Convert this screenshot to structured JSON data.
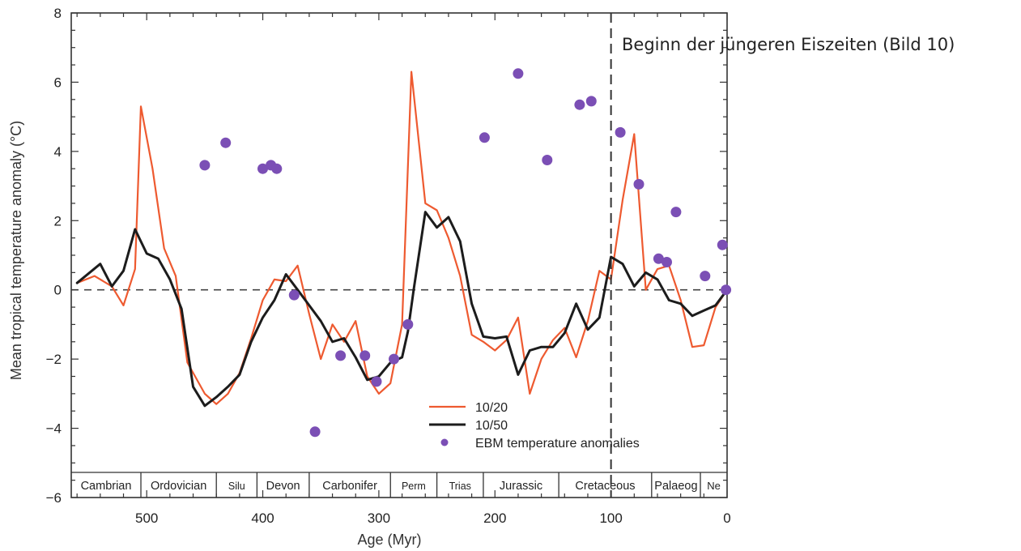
{
  "chart_data": {
    "type": "line",
    "xlabel": "Age (Myr)",
    "ylabel": "Mean tropical temperature anomaly (°C)",
    "xlim": [
      565,
      0
    ],
    "ylim": [
      -6,
      8
    ],
    "x_ticks": [
      500,
      400,
      300,
      200,
      100,
      0
    ],
    "y_ticks": [
      -6,
      -4,
      -2,
      0,
      2,
      4,
      6,
      8
    ],
    "grid": false,
    "legend_position": "bottom-center",
    "reference_line": {
      "y": 0,
      "style": "dashed"
    },
    "marker_line": {
      "x": 100,
      "style": "dashed"
    },
    "annotation": "Beginn der jüngeren Eiszeiten (Bild 10)",
    "periods": [
      {
        "label": "Cambrian",
        "start": 565,
        "end": 505
      },
      {
        "label": "Ordovician",
        "start": 505,
        "end": 440
      },
      {
        "label": "Silu",
        "start": 440,
        "end": 405
      },
      {
        "label": "Devon",
        "start": 405,
        "end": 360
      },
      {
        "label": "Carbonifer",
        "start": 360,
        "end": 290
      },
      {
        "label": "Perm",
        "start": 290,
        "end": 250
      },
      {
        "label": "Trias",
        "start": 250,
        "end": 210
      },
      {
        "label": "Jurassic",
        "start": 210,
        "end": 145
      },
      {
        "label": "Cretaceous",
        "start": 145,
        "end": 65
      },
      {
        "label": "Palaeog",
        "start": 65,
        "end": 23
      },
      {
        "label": "Ne",
        "start": 23,
        "end": 0
      }
    ],
    "series": [
      {
        "name": "10/20",
        "kind": "line",
        "color": "#ee5a30",
        "points": [
          [
            560,
            0.2
          ],
          [
            545,
            0.4
          ],
          [
            530,
            0.1
          ],
          [
            520,
            -0.45
          ],
          [
            510,
            0.6
          ],
          [
            505,
            5.3
          ],
          [
            495,
            3.5
          ],
          [
            485,
            1.2
          ],
          [
            475,
            0.4
          ],
          [
            465,
            -2.1
          ],
          [
            450,
            -3.0
          ],
          [
            440,
            -3.3
          ],
          [
            430,
            -3.0
          ],
          [
            420,
            -2.4
          ],
          [
            410,
            -1.4
          ],
          [
            400,
            -0.3
          ],
          [
            390,
            0.3
          ],
          [
            380,
            0.25
          ],
          [
            370,
            0.7
          ],
          [
            360,
            -0.7
          ],
          [
            350,
            -2.0
          ],
          [
            340,
            -1.0
          ],
          [
            330,
            -1.5
          ],
          [
            320,
            -0.9
          ],
          [
            310,
            -2.5
          ],
          [
            300,
            -3.0
          ],
          [
            290,
            -2.7
          ],
          [
            280,
            -1.0
          ],
          [
            272,
            6.3
          ],
          [
            260,
            2.5
          ],
          [
            250,
            2.3
          ],
          [
            240,
            1.5
          ],
          [
            230,
            0.4
          ],
          [
            220,
            -1.3
          ],
          [
            210,
            -1.5
          ],
          [
            200,
            -1.75
          ],
          [
            190,
            -1.45
          ],
          [
            180,
            -0.8
          ],
          [
            170,
            -3.0
          ],
          [
            160,
            -2.0
          ],
          [
            150,
            -1.45
          ],
          [
            140,
            -1.1
          ],
          [
            130,
            -1.95
          ],
          [
            120,
            -0.9
          ],
          [
            110,
            0.55
          ],
          [
            100,
            0.3
          ],
          [
            90,
            2.6
          ],
          [
            80,
            4.5
          ],
          [
            70,
            0.0
          ],
          [
            60,
            0.6
          ],
          [
            50,
            0.7
          ],
          [
            40,
            -0.3
          ],
          [
            30,
            -1.65
          ],
          [
            20,
            -1.6
          ],
          [
            10,
            -0.5
          ],
          [
            0,
            0.0
          ]
        ]
      },
      {
        "name": "10/50",
        "kind": "line",
        "color": "#1c1c1c",
        "points": [
          [
            560,
            0.2
          ],
          [
            540,
            0.75
          ],
          [
            530,
            0.1
          ],
          [
            520,
            0.55
          ],
          [
            510,
            1.75
          ],
          [
            500,
            1.05
          ],
          [
            490,
            0.9
          ],
          [
            480,
            0.3
          ],
          [
            470,
            -0.55
          ],
          [
            460,
            -2.8
          ],
          [
            450,
            -3.35
          ],
          [
            440,
            -3.1
          ],
          [
            430,
            -2.8
          ],
          [
            420,
            -2.45
          ],
          [
            410,
            -1.5
          ],
          [
            400,
            -0.8
          ],
          [
            390,
            -0.3
          ],
          [
            380,
            0.45
          ],
          [
            370,
            0.0
          ],
          [
            360,
            -0.45
          ],
          [
            350,
            -0.9
          ],
          [
            340,
            -1.5
          ],
          [
            330,
            -1.4
          ],
          [
            320,
            -1.95
          ],
          [
            310,
            -2.6
          ],
          [
            300,
            -2.5
          ],
          [
            290,
            -2.1
          ],
          [
            280,
            -1.95
          ],
          [
            275,
            -1.2
          ],
          [
            270,
            0.0
          ],
          [
            260,
            2.25
          ],
          [
            250,
            1.8
          ],
          [
            240,
            2.1
          ],
          [
            230,
            1.4
          ],
          [
            220,
            -0.4
          ],
          [
            210,
            -1.35
          ],
          [
            200,
            -1.4
          ],
          [
            190,
            -1.35
          ],
          [
            180,
            -2.45
          ],
          [
            170,
            -1.75
          ],
          [
            160,
            -1.65
          ],
          [
            150,
            -1.65
          ],
          [
            140,
            -1.25
          ],
          [
            130,
            -0.4
          ],
          [
            120,
            -1.15
          ],
          [
            110,
            -0.8
          ],
          [
            100,
            0.95
          ],
          [
            90,
            0.75
          ],
          [
            80,
            0.1
          ],
          [
            70,
            0.5
          ],
          [
            60,
            0.3
          ],
          [
            50,
            -0.3
          ],
          [
            40,
            -0.4
          ],
          [
            30,
            -0.75
          ],
          [
            20,
            -0.6
          ],
          [
            10,
            -0.45
          ],
          [
            0,
            0.0
          ]
        ]
      },
      {
        "name": "EBM temperature anomalies",
        "kind": "scatter",
        "color": "#7b4fb5",
        "points": [
          [
            450,
            3.6
          ],
          [
            432,
            4.25
          ],
          [
            400,
            3.5
          ],
          [
            393,
            3.6
          ],
          [
            388,
            3.5
          ],
          [
            373,
            -0.15
          ],
          [
            355,
            -4.1
          ],
          [
            333,
            -1.9
          ],
          [
            312,
            -1.9
          ],
          [
            302,
            -2.65
          ],
          [
            287,
            -2.0
          ],
          [
            275,
            -1.0
          ],
          [
            209,
            4.4
          ],
          [
            180,
            6.25
          ],
          [
            155,
            3.75
          ],
          [
            127,
            5.35
          ],
          [
            117,
            5.45
          ],
          [
            92,
            4.55
          ],
          [
            76,
            3.05
          ],
          [
            59,
            0.9
          ],
          [
            52,
            0.8
          ],
          [
            44,
            2.25
          ],
          [
            19,
            0.4
          ],
          [
            4,
            1.3
          ],
          [
            1,
            0.0
          ]
        ]
      }
    ]
  }
}
